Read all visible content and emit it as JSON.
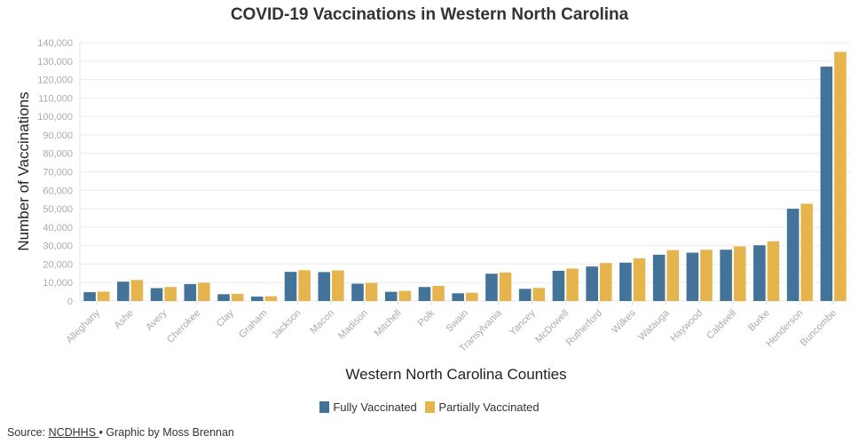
{
  "colors": {
    "fully": "#44739a",
    "partially": "#e6b44c"
  },
  "source": {
    "prefix": "Source: ",
    "link": "NCDHHS ",
    "suffix": " • Graphic by Moss Brennan"
  },
  "chart_data": {
    "type": "bar",
    "title": "COVID-19 Vaccinations in Western North Carolina",
    "xlabel": "Western North Carolina Counties",
    "ylabel": "Number of Vaccinations",
    "ylim": [
      0,
      140000
    ],
    "yticks": [
      0,
      10000,
      20000,
      30000,
      40000,
      50000,
      60000,
      70000,
      80000,
      90000,
      100000,
      110000,
      120000,
      130000,
      140000
    ],
    "grid": true,
    "legend_position": "bottom",
    "categories": [
      "Alleghany",
      "Ashe",
      "Avery",
      "Cherokee",
      "Clay",
      "Graham",
      "Jackson",
      "Macon",
      "Madison",
      "Mitchell",
      "Polk",
      "Swain",
      "Transylvania",
      "Yancey",
      "McDowell",
      "Rutherford",
      "Wilkes",
      "Watauga",
      "Haywood",
      "Caldwell",
      "Burke",
      "Henderson",
      "Buncombe"
    ],
    "series": [
      {
        "name": "Fully Vaccinated",
        "values": [
          4800,
          10500,
          7000,
          9200,
          3700,
          2400,
          15800,
          15700,
          9400,
          5000,
          7600,
          4200,
          14800,
          6600,
          16400,
          18700,
          20800,
          25100,
          26200,
          27800,
          30200,
          50000,
          127000
        ]
      },
      {
        "name": "Partially Vaccinated",
        "values": [
          5100,
          11400,
          7600,
          9900,
          3900,
          2600,
          16700,
          16600,
          9800,
          5500,
          8200,
          4500,
          15500,
          7100,
          17600,
          20600,
          23100,
          27600,
          27800,
          29600,
          32400,
          52700,
          135000
        ]
      }
    ]
  }
}
